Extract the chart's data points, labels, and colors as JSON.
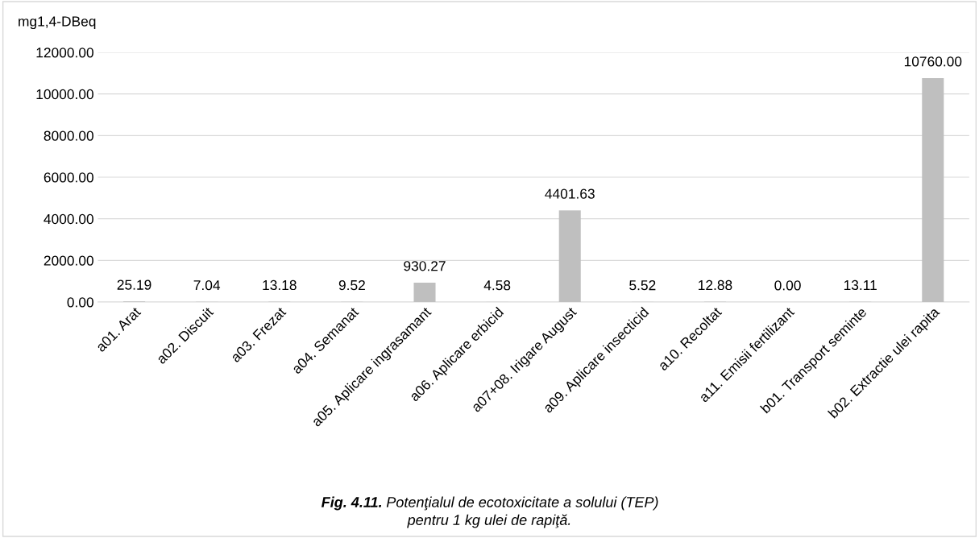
{
  "chart_data": {
    "type": "bar",
    "ylabel": "mg1,4-DBeq",
    "categories": [
      "a01. Arat",
      "a02. Discuit",
      "a03. Frezat",
      "a04. Semanat",
      "a05. Aplicare ingrasamant",
      "a06. Aplicare erbicid",
      "a07+08. Irigare August",
      "a09. Aplicare insecticid",
      "a10. Recoltat",
      "a11. Emisii fertilizant",
      "b01. Transport seminte",
      "b02. Extractie ulei rapita"
    ],
    "values": [
      25.19,
      7.04,
      13.18,
      9.52,
      930.27,
      4.58,
      4401.63,
      5.52,
      12.88,
      0.0,
      13.11,
      10760.0
    ],
    "value_labels": [
      "25.19",
      "7.04",
      "13.18",
      "9.52",
      "930.27",
      "4.58",
      "4401.63",
      "5.52",
      "12.88",
      "0.00",
      "13.11",
      "10760.00"
    ],
    "color": "#bfbfbf",
    "ylim": [
      0,
      12000
    ],
    "yticks": [
      {
        "value": 0,
        "label": "0.00"
      },
      {
        "value": 2000,
        "label": "2000.00"
      },
      {
        "value": 4000,
        "label": "4000.00"
      },
      {
        "value": 6000,
        "label": "6000.00"
      },
      {
        "value": 8000,
        "label": "8000.00"
      },
      {
        "value": 10000,
        "label": "10000.00"
      },
      {
        "value": 12000,
        "label": "12000.00"
      }
    ],
    "grid": "y",
    "legend": false,
    "annotations": [
      "Fig. 4.11.",
      "Potenţialul de ecotoxicitate a solului (TEP)",
      "pentru 1 kg ulei de rapiţă."
    ]
  }
}
